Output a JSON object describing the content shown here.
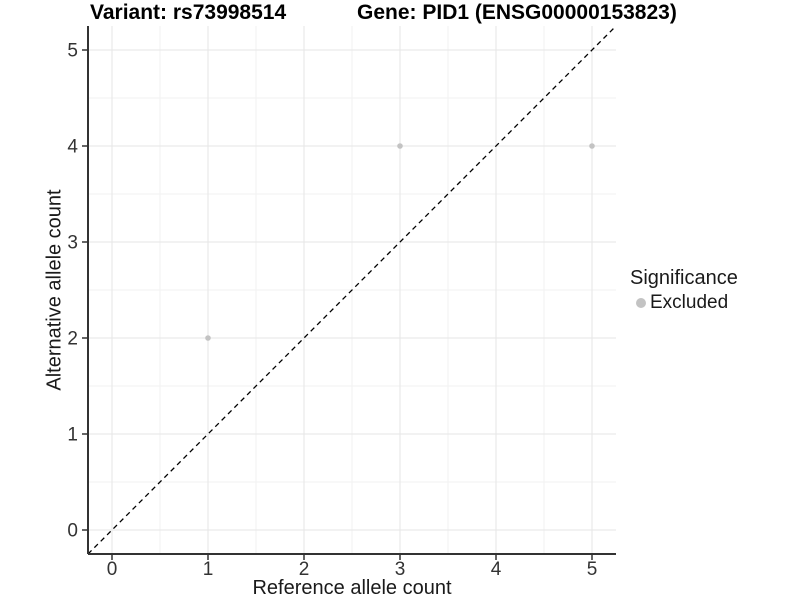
{
  "chart_data": {
    "type": "scatter",
    "titles": {
      "left": "Variant: rs73998514",
      "right": "Gene: PID1 (ENSG00000153823)"
    },
    "xlabel": "Reference allele count",
    "ylabel": "Alternative allele count",
    "xlim": [
      -0.25,
      5.25
    ],
    "ylim": [
      -0.25,
      5.25
    ],
    "x_ticks": [
      0,
      1,
      2,
      3,
      4,
      5
    ],
    "y_ticks": [
      0,
      1,
      2,
      3,
      4,
      5
    ],
    "grid": {
      "major": true,
      "minor": true
    },
    "series": [
      {
        "name": "Excluded",
        "color": "#c3c3c3",
        "points": [
          [
            1,
            2
          ],
          [
            3,
            4
          ],
          [
            5,
            4
          ]
        ]
      }
    ],
    "reference_line": {
      "type": "identity",
      "slope": 1,
      "intercept": 0,
      "style": "dashed",
      "color": "#000000"
    },
    "legend": {
      "title": "Significance",
      "position": "right",
      "items": [
        {
          "label": "Excluded",
          "color": "#c3c3c3",
          "marker": "circle"
        }
      ]
    },
    "colors": {
      "background": "#ffffff",
      "grid_major": "#e6e6e6",
      "grid_minor": "#f2f2f2",
      "axis_line": "#333333",
      "tick_text": "#333333"
    }
  }
}
